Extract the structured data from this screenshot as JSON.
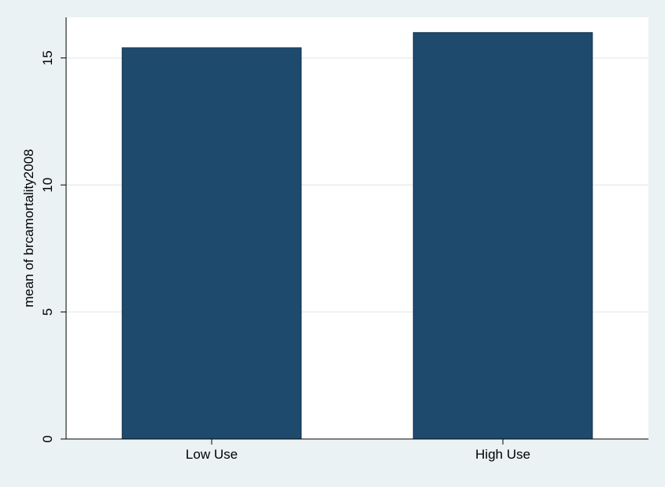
{
  "chart_data": {
    "type": "bar",
    "categories": [
      "Low Use",
      "High Use"
    ],
    "values": [
      15.4,
      16.0
    ],
    "title": "",
    "xlabel": "",
    "ylabel": "mean of brcamortality2008",
    "ylim": [
      0,
      16.6
    ],
    "yticks": [
      0,
      5,
      10,
      15
    ],
    "grid": true,
    "legend": "none",
    "colors": {
      "bar": "#1e4a6e",
      "plot_background": "#ffffff",
      "page_background": "#eaf2f3",
      "gridline": "#e6eef0",
      "axis": "#000000"
    }
  }
}
